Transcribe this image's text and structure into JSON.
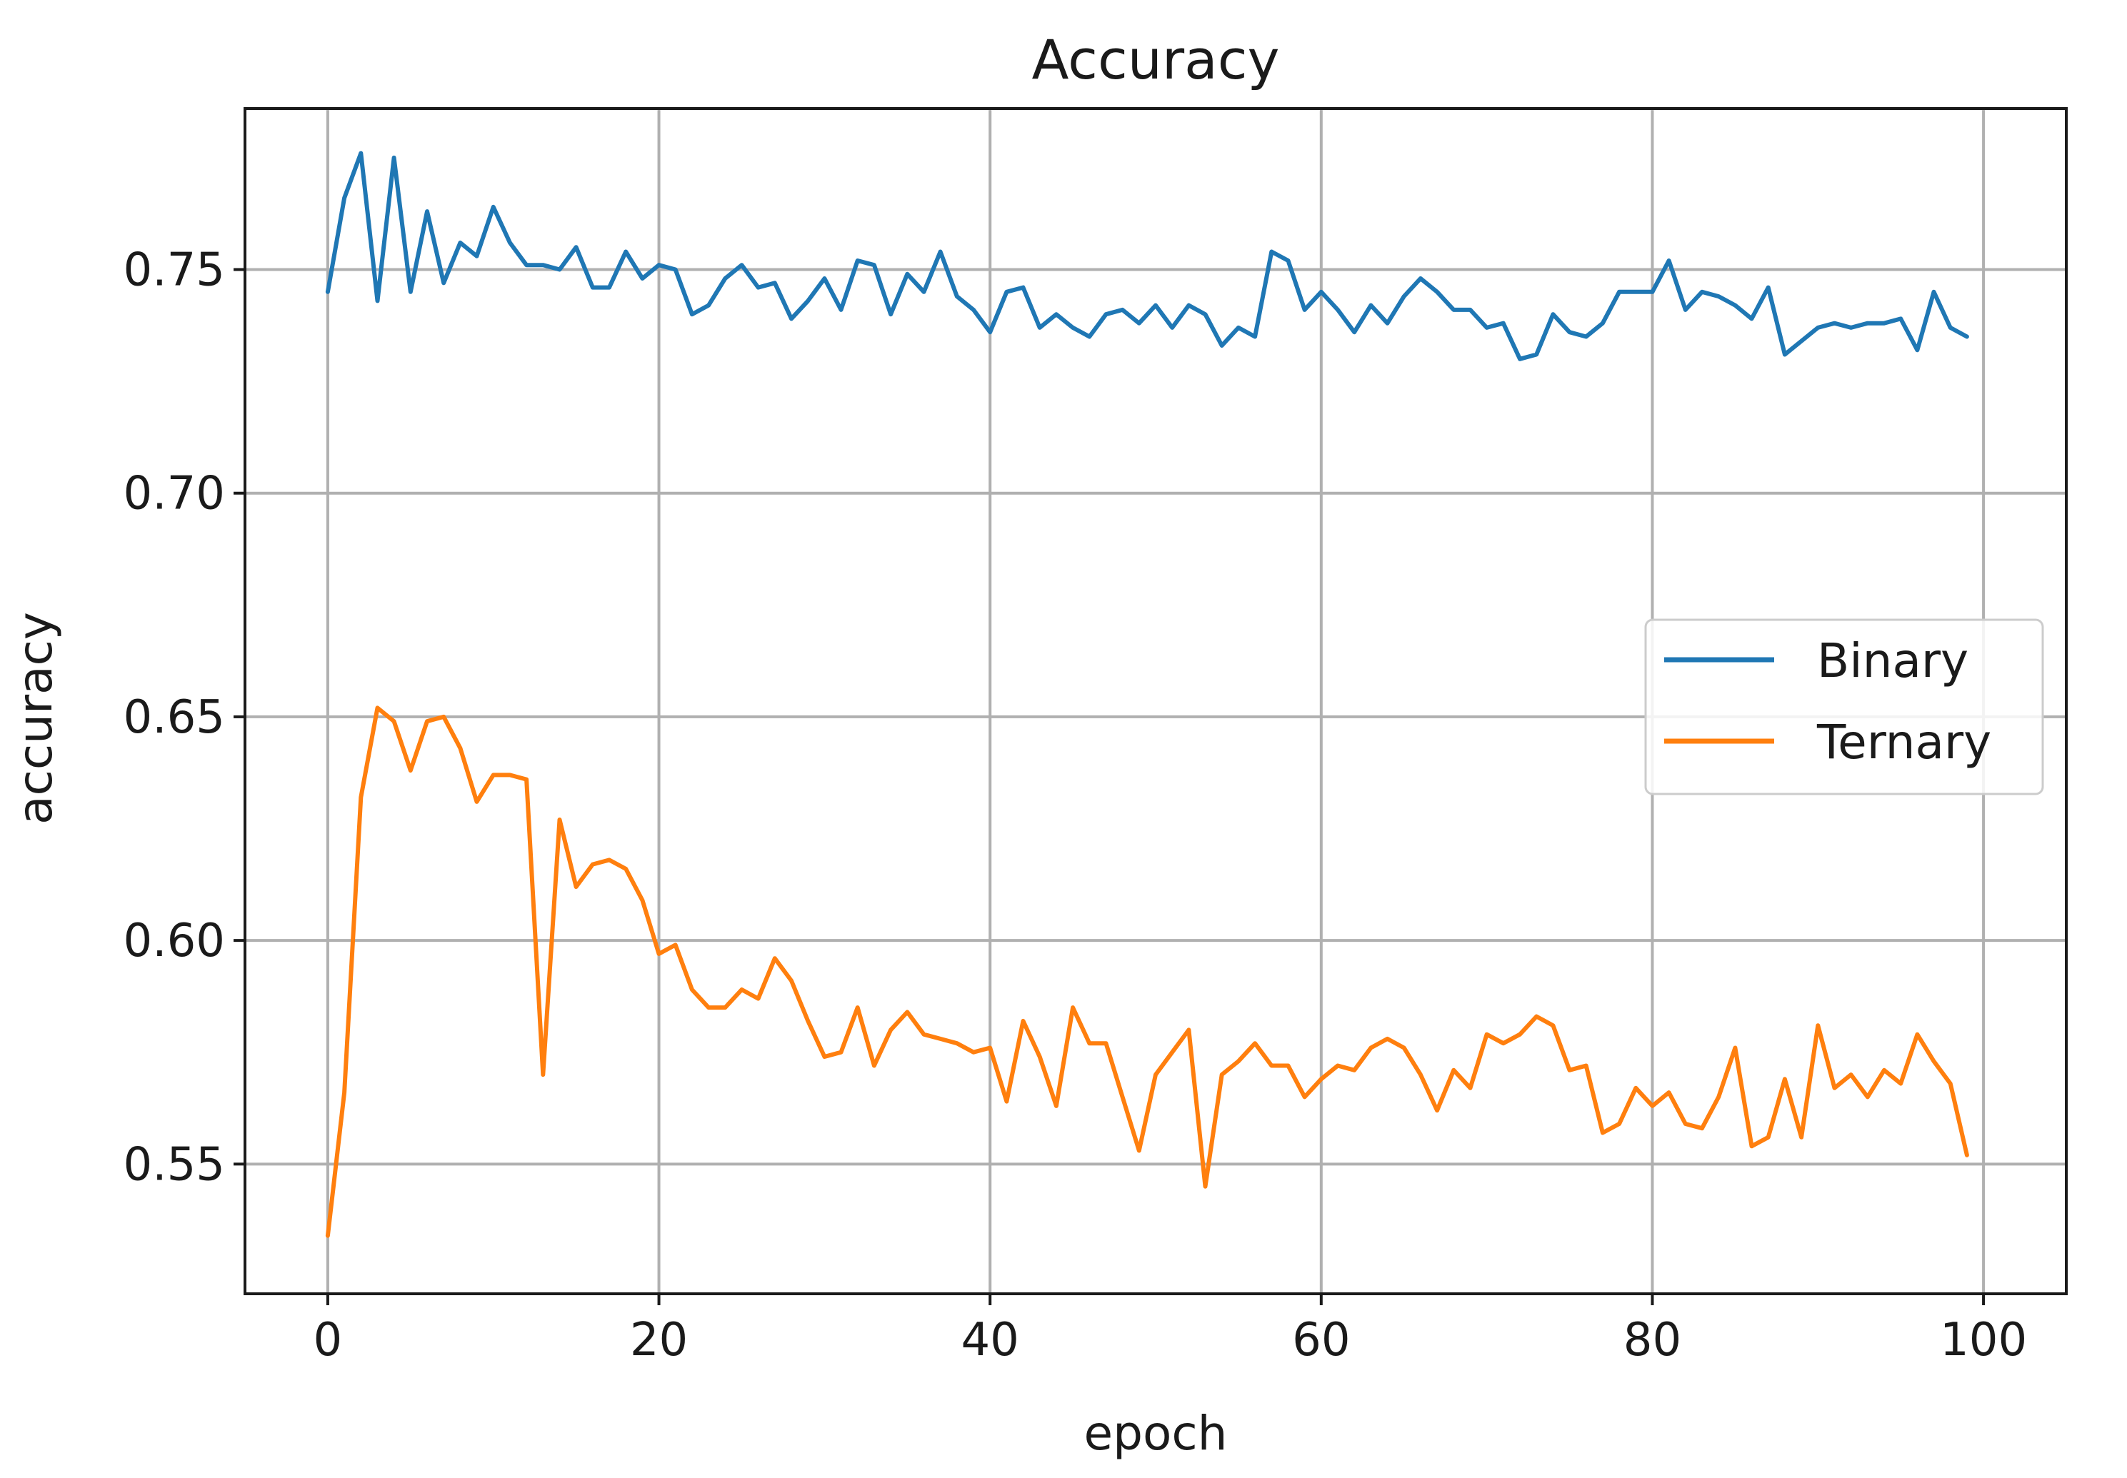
{
  "chart_data": {
    "type": "line",
    "title": "Accuracy",
    "xlabel": "epoch",
    "ylabel": "accuracy",
    "xlim": [
      -5,
      105
    ],
    "ylim": [
      0.521,
      0.786
    ],
    "x_ticks": [
      0,
      20,
      40,
      60,
      80,
      100
    ],
    "x_tick_labels": [
      "0",
      "20",
      "40",
      "60",
      "80",
      "100"
    ],
    "y_ticks": [
      0.55,
      0.6,
      0.65,
      0.7,
      0.75
    ],
    "y_tick_labels": [
      "0.55",
      "0.60",
      "0.65",
      "0.70",
      "0.75"
    ],
    "grid": true,
    "legend_position": "center-right",
    "x": [
      0,
      1,
      2,
      3,
      4,
      5,
      6,
      7,
      8,
      9,
      10,
      11,
      12,
      13,
      14,
      15,
      16,
      17,
      18,
      19,
      20,
      21,
      22,
      23,
      24,
      25,
      26,
      27,
      28,
      29,
      30,
      31,
      32,
      33,
      34,
      35,
      36,
      37,
      38,
      39,
      40,
      41,
      42,
      43,
      44,
      45,
      46,
      47,
      48,
      49,
      50,
      51,
      52,
      53,
      54,
      55,
      56,
      57,
      58,
      59,
      60,
      61,
      62,
      63,
      64,
      65,
      66,
      67,
      68,
      69,
      70,
      71,
      72,
      73,
      74,
      75,
      76,
      77,
      78,
      79,
      80,
      81,
      82,
      83,
      84,
      85,
      86,
      87,
      88,
      89,
      90,
      91,
      92,
      93,
      94,
      95,
      96,
      97,
      98,
      99
    ],
    "series": [
      {
        "name": "Binary",
        "color": "#1f77b4",
        "values": [
          0.745,
          0.766,
          0.776,
          0.743,
          0.775,
          0.745,
          0.763,
          0.747,
          0.756,
          0.753,
          0.764,
          0.756,
          0.751,
          0.751,
          0.75,
          0.755,
          0.746,
          0.746,
          0.754,
          0.748,
          0.751,
          0.75,
          0.74,
          0.742,
          0.748,
          0.751,
          0.746,
          0.747,
          0.739,
          0.743,
          0.748,
          0.741,
          0.752,
          0.751,
          0.74,
          0.749,
          0.745,
          0.754,
          0.744,
          0.741,
          0.736,
          0.745,
          0.746,
          0.737,
          0.74,
          0.737,
          0.735,
          0.74,
          0.741,
          0.738,
          0.742,
          0.737,
          0.742,
          0.74,
          0.733,
          0.737,
          0.735,
          0.754,
          0.752,
          0.741,
          0.745,
          0.741,
          0.736,
          0.742,
          0.738,
          0.744,
          0.748,
          0.745,
          0.741,
          0.741,
          0.737,
          0.738,
          0.73,
          0.731,
          0.74,
          0.736,
          0.735,
          0.738,
          0.745,
          0.745,
          0.745,
          0.752,
          0.741,
          0.745,
          0.744,
          0.742,
          0.739,
          0.746,
          0.731,
          0.734,
          0.737,
          0.738,
          0.737,
          0.738,
          0.738,
          0.739,
          0.732,
          0.745,
          0.737,
          0.735
        ]
      },
      {
        "name": "Ternary",
        "color": "#ff7f0e",
        "values": [
          0.534,
          0.566,
          0.632,
          0.652,
          0.649,
          0.638,
          0.649,
          0.65,
          0.643,
          0.631,
          0.637,
          0.637,
          0.636,
          0.57,
          0.627,
          0.612,
          0.617,
          0.618,
          0.616,
          0.609,
          0.597,
          0.599,
          0.589,
          0.585,
          0.585,
          0.589,
          0.587,
          0.596,
          0.591,
          0.582,
          0.574,
          0.575,
          0.585,
          0.572,
          0.58,
          0.584,
          0.579,
          0.578,
          0.577,
          0.575,
          0.576,
          0.564,
          0.582,
          0.574,
          0.563,
          0.585,
          0.577,
          0.577,
          0.565,
          0.553,
          0.57,
          0.575,
          0.58,
          0.545,
          0.57,
          0.573,
          0.577,
          0.572,
          0.572,
          0.565,
          0.569,
          0.572,
          0.571,
          0.576,
          0.578,
          0.576,
          0.57,
          0.562,
          0.571,
          0.567,
          0.579,
          0.577,
          0.579,
          0.583,
          0.581,
          0.571,
          0.572,
          0.557,
          0.559,
          0.567,
          0.563,
          0.566,
          0.559,
          0.558,
          0.565,
          0.576,
          0.554,
          0.556,
          0.569,
          0.556,
          0.581,
          0.567,
          0.57,
          0.565,
          0.571,
          0.568,
          0.579,
          0.573,
          0.568,
          0.552
        ]
      }
    ]
  }
}
